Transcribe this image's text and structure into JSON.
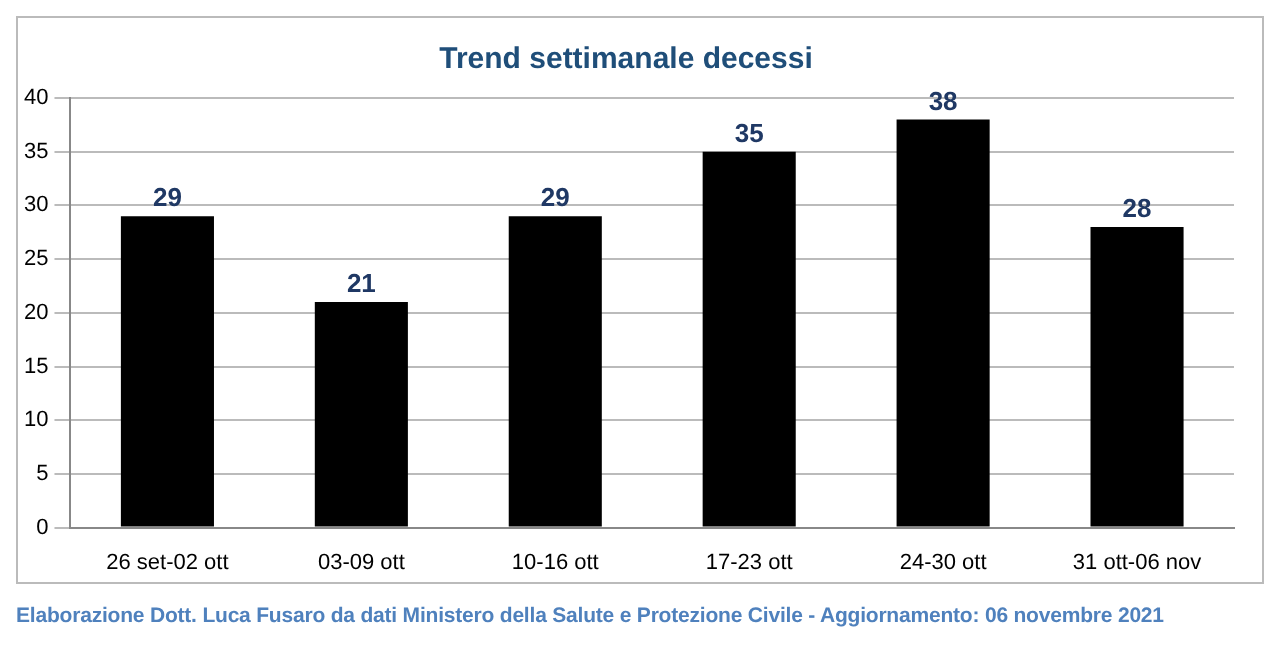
{
  "chart_data": {
    "type": "bar",
    "title": "Trend settimanale decessi",
    "categories": [
      "26 set-02 ott",
      "03-09 ott",
      "10-16 ott",
      "17-23 ott",
      "24-30 ott",
      "31 ott-06 nov"
    ],
    "values": [
      29,
      21,
      29,
      35,
      38,
      28
    ],
    "color": "#000000",
    "ylim": [
      0,
      40
    ],
    "yticks": [
      0,
      5,
      10,
      15,
      20,
      25,
      30,
      35,
      40
    ],
    "grid": "y",
    "data_labels": true,
    "legend": false,
    "annotations": [
      "Elaborazione Dott. Luca Fusaro da dati Ministero della Salute e Protezione Civile - Aggiornamento: 06 novembre 2021"
    ]
  }
}
